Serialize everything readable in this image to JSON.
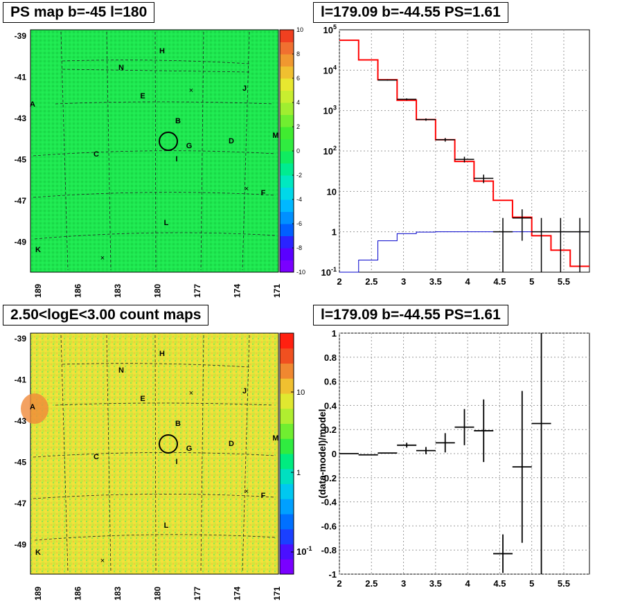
{
  "panels": {
    "ps_map": {
      "title": "PS map b=-45 l=180"
    },
    "spectrum": {
      "title": "l=179.09 b=-44.55 PS=1.61"
    },
    "count_map": {
      "title": "2.50<logE<3.00 count maps"
    },
    "residual": {
      "title": "l=179.09 b=-44.55 PS=1.61"
    }
  },
  "colors": {
    "map_green": "#1fe850",
    "count_yellow": "#dfe83a",
    "model_red": "#ff0000",
    "bkg_blue": "#0000cc"
  },
  "map_labels": {
    "lat_ticks": [
      "-39",
      "-41",
      "-43",
      "-45",
      "-47",
      "-49"
    ],
    "lon_ticks": [
      "189",
      "186",
      "183",
      "180",
      "177",
      "174",
      "171"
    ],
    "sources": [
      "A",
      "B",
      "C",
      "D",
      "E",
      "F",
      "G",
      "H",
      "I",
      "J",
      "K",
      "L",
      "M",
      "N"
    ]
  },
  "chart_data": [
    {
      "type": "heatmap",
      "title": "PS map b=-45 l=180",
      "xlabel": "",
      "ylabel": "",
      "x_ticks": [
        189,
        186,
        183,
        180,
        177,
        174,
        171
      ],
      "y_ticks": [
        -39,
        -41,
        -43,
        -45,
        -47,
        -49
      ],
      "colorbar": {
        "range": [
          -10,
          10
        ],
        "ticks": [
          -10,
          -8,
          -6,
          -4,
          -2,
          0,
          2,
          4,
          6,
          8,
          10
        ]
      },
      "dominant_value": 0
    },
    {
      "type": "line",
      "title": "l=179.09 b=-44.55 PS=1.61",
      "xlabel": "",
      "ylabel": "",
      "xlim": [
        2,
        5.9
      ],
      "ylim": [
        0.1,
        100000
      ],
      "yscale": "log",
      "x_ticks": [
        "2",
        "2.5",
        "3",
        "3.5",
        "4",
        "4.5",
        "5",
        "5.5"
      ],
      "y_ticks": [
        "10^-1",
        "1",
        "10",
        "10^2",
        "10^3",
        "10^4",
        "10^5"
      ],
      "bin_edges": [
        2.0,
        2.3,
        2.6,
        2.9,
        3.2,
        3.5,
        3.8,
        4.1,
        4.4,
        4.7,
        5.0,
        5.3,
        5.6,
        5.9
      ],
      "series": [
        {
          "values": [
            55000,
            18000,
            5800,
            1800,
            600,
            190,
            55,
            18,
            6,
            2.3,
            0.8,
            0.35,
            0.14
          ]
        },
        {
          "values": [
            0.1,
            0.2,
            0.6,
            0.9,
            0.98,
            1,
            1,
            1,
            1,
            1,
            1,
            1,
            1
          ]
        }
      ],
      "data_points": [
        {
          "x": 2.75,
          "y": 5700,
          "ylo": 5500,
          "yhi": 5900
        },
        {
          "x": 3.05,
          "y": 1900,
          "ylo": 1800,
          "yhi": 2000
        },
        {
          "x": 3.35,
          "y": 600,
          "ylo": 560,
          "yhi": 640
        },
        {
          "x": 3.65,
          "y": 190,
          "ylo": 170,
          "yhi": 210
        },
        {
          "x": 3.95,
          "y": 62,
          "ylo": 52,
          "yhi": 72
        },
        {
          "x": 4.25,
          "y": 21,
          "ylo": 16,
          "yhi": 26
        },
        {
          "x": 4.55,
          "y": 1,
          "ylo": 0.1,
          "yhi": 2.2
        },
        {
          "x": 4.85,
          "y": 2.2,
          "ylo": 0.6,
          "yhi": 3.6
        },
        {
          "x": 5.15,
          "y": 1,
          "ylo": 0.1,
          "yhi": 2.2
        },
        {
          "x": 5.45,
          "y": 1,
          "ylo": 0.1,
          "yhi": 2.2
        },
        {
          "x": 5.75,
          "y": 1,
          "ylo": 0.1,
          "yhi": 2.2
        }
      ]
    },
    {
      "type": "heatmap",
      "title": "2.50<logE<3.00 count maps",
      "x_ticks": [
        189,
        186,
        183,
        180,
        177,
        174,
        171
      ],
      "y_ticks": [
        -39,
        -41,
        -43,
        -45,
        -47,
        -49
      ],
      "colorbar": {
        "scale": "log",
        "ticks": [
          "10^-1",
          "1",
          "10"
        ]
      }
    },
    {
      "type": "scatter",
      "title": "l=179.09 b=-44.55 PS=1.61",
      "xlabel": "",
      "ylabel": "(data-model)/model",
      "xlim": [
        2,
        5.9
      ],
      "ylim": [
        -1,
        1
      ],
      "x_ticks": [
        "2",
        "2.5",
        "3",
        "3.5",
        "4",
        "4.5",
        "5",
        "5.5"
      ],
      "y_ticks": [
        "-1",
        "-0.8",
        "-0.6",
        "-0.4",
        "-0.2",
        "0",
        "0.2",
        "0.4",
        "0.6",
        "0.8",
        "1"
      ],
      "points": [
        {
          "x": 2.15,
          "y": 0.0,
          "err": 0.0
        },
        {
          "x": 2.45,
          "y": -0.01,
          "err": 0.0
        },
        {
          "x": 2.75,
          "y": 0.005,
          "err": 0.0
        },
        {
          "x": 3.05,
          "y": 0.07,
          "err": 0.02
        },
        {
          "x": 3.35,
          "y": 0.025,
          "err": 0.03
        },
        {
          "x": 3.65,
          "y": 0.09,
          "err": 0.08
        },
        {
          "x": 3.95,
          "y": 0.22,
          "err": 0.15
        },
        {
          "x": 4.25,
          "y": 0.19,
          "err": 0.26
        },
        {
          "x": 4.55,
          "y": -0.83,
          "err": 0.16
        },
        {
          "x": 4.85,
          "y": -0.11,
          "err": 0.63
        },
        {
          "x": 5.15,
          "y": 0.25,
          "err": 1.3
        }
      ]
    }
  ]
}
